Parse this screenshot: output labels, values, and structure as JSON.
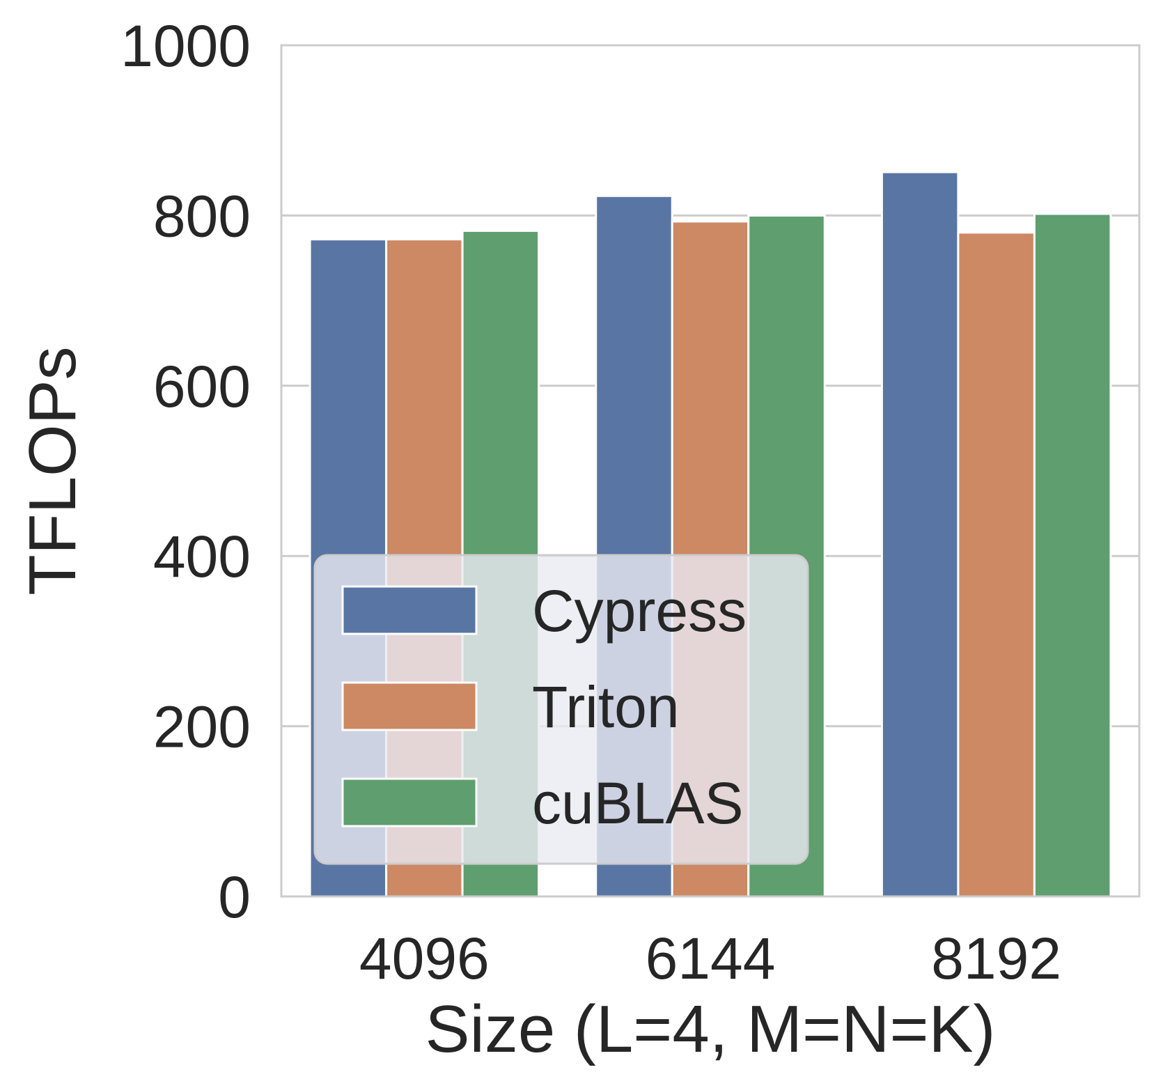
{
  "chart_data": {
    "type": "bar",
    "title": "",
    "xlabel": "Size (L=4, M=N=K)",
    "ylabel": "TFLOPs",
    "categories": [
      "4096",
      "6144",
      "8192"
    ],
    "series": [
      {
        "name": "Cypress",
        "color": "#5975a4",
        "values": [
          772,
          823,
          851
        ]
      },
      {
        "name": "Triton",
        "color": "#cc8963",
        "values": [
          772,
          793,
          780
        ]
      },
      {
        "name": "cuBLAS",
        "color": "#5f9e6e",
        "values": [
          782,
          800,
          802
        ]
      }
    ],
    "ylim": [
      0,
      1000
    ],
    "yticks": [
      0,
      200,
      400,
      600,
      800,
      1000
    ],
    "grid": true,
    "legend_position": "lower-left"
  }
}
